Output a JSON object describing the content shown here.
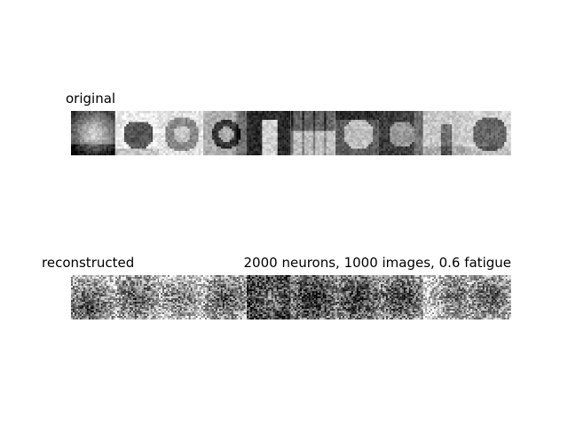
{
  "figure": {
    "original_title": "original",
    "reconstructed_title": "reconstructed",
    "caption": "2000 neurons, 1000 images, 0.6 fatigue"
  },
  "original_tiles": [
    {
      "name": "original-tile-sun-glare",
      "scene": "sun"
    },
    {
      "name": "original-tile-elephant",
      "scene": "elephant"
    },
    {
      "name": "original-tile-cat-in-dish",
      "scene": "cat"
    },
    {
      "name": "original-tile-bicycle",
      "scene": "bicycle"
    },
    {
      "name": "original-tile-person-dark",
      "scene": "person"
    },
    {
      "name": "original-tile-table-scene",
      "scene": "table"
    },
    {
      "name": "original-tile-dog",
      "scene": "dog"
    },
    {
      "name": "original-tile-people-dark",
      "scene": "people"
    },
    {
      "name": "original-tile-animal-outdoor",
      "scene": "outdoor"
    },
    {
      "name": "original-tile-lion",
      "scene": "lion"
    }
  ],
  "reconstructed_tiles": [
    {
      "name": "reconstructed-tile-1",
      "tone": 0.55,
      "blob": "dark-bottom-left"
    },
    {
      "name": "reconstructed-tile-2",
      "tone": 0.6,
      "blob": "dark-center"
    },
    {
      "name": "reconstructed-tile-3",
      "tone": 0.7,
      "blob": "dark-center"
    },
    {
      "name": "reconstructed-tile-4",
      "tone": 0.6,
      "blob": "dark-center"
    },
    {
      "name": "reconstructed-tile-5",
      "tone": 0.3,
      "blob": "light-center"
    },
    {
      "name": "reconstructed-tile-6",
      "tone": 0.4,
      "blob": "dark-center"
    },
    {
      "name": "reconstructed-tile-7",
      "tone": 0.45,
      "blob": "dark-center"
    },
    {
      "name": "reconstructed-tile-8",
      "tone": 0.5,
      "blob": "dark-center"
    },
    {
      "name": "reconstructed-tile-9",
      "tone": 0.65,
      "blob": "dark-right"
    },
    {
      "name": "reconstructed-tile-10",
      "tone": 0.6,
      "blob": "dark-center"
    }
  ]
}
